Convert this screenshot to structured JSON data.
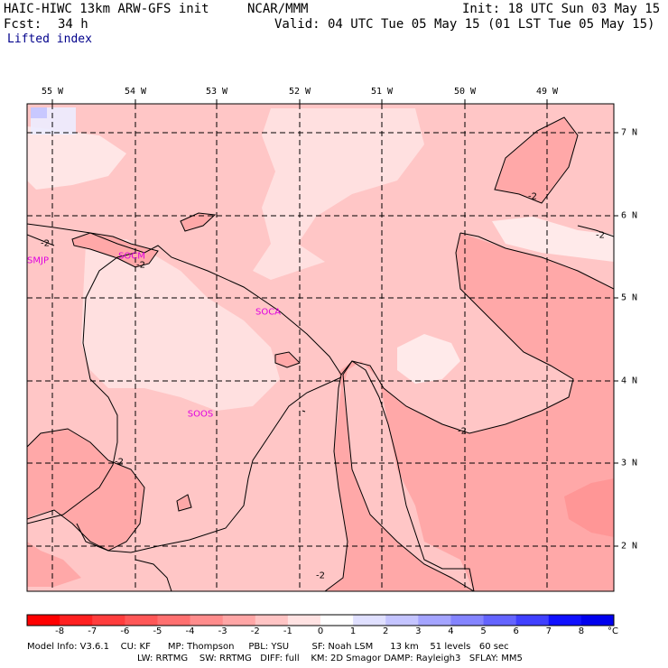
{
  "header": {
    "model": "HAIC-HIWC 13km ARW-GFS init",
    "org": "NCAR/MMM",
    "init": "Init: 18 UTC Sun 03 May 15",
    "fcst_label": "Fcst:",
    "fcst_value": "34 h",
    "valid": "Valid: 04 UTC Tue 05 May 15 (01 LST Tue 05 May 15)",
    "field": "Lifted index"
  },
  "map": {
    "lon_labels": [
      "55 W",
      "54 W",
      "53 W",
      "52 W",
      "51 W",
      "50 W",
      "49 W"
    ],
    "lat_labels": [
      "7 N",
      "6 N",
      "5 N",
      "4 N",
      "3 N",
      "2 N"
    ],
    "stations": [
      "SMJP",
      "SOCM",
      "SOCA",
      "SOOS"
    ],
    "contour_labels": [
      "-2",
      "-2",
      "-2",
      "-2",
      "-2",
      "-2",
      "-2"
    ]
  },
  "colorbar": {
    "ticks": [
      "-8",
      "-7",
      "-6",
      "-5",
      "-4",
      "-3",
      "-2",
      "-1",
      "0",
      "1",
      "2",
      "3",
      "4",
      "5",
      "6",
      "7",
      "8"
    ],
    "unit": "°C",
    "colors": [
      "#ff0000",
      "#ff2020",
      "#ff3d3d",
      "#ff5757",
      "#ff7070",
      "#ff8c8c",
      "#ffa6a6",
      "#ffc4c4",
      "#ffe2e2",
      "#ffffff",
      "#e0e0ff",
      "#c4c4ff",
      "#a4a4ff",
      "#8484ff",
      "#6464ff",
      "#4040ff",
      "#1010ff",
      "#0000ee"
    ]
  },
  "footer": {
    "line1": "Model Info: V3.6.1    CU: KF      MP: Thompson     PBL: YSU        SF: Noah LSM      13 km    51 levels   60 sec",
    "line2": "LW: RRTMG    SW: RRTMG   DIFF: full    KM: 2D Smagor DAMP: Rayleigh3   SFLAY: MM5"
  }
}
